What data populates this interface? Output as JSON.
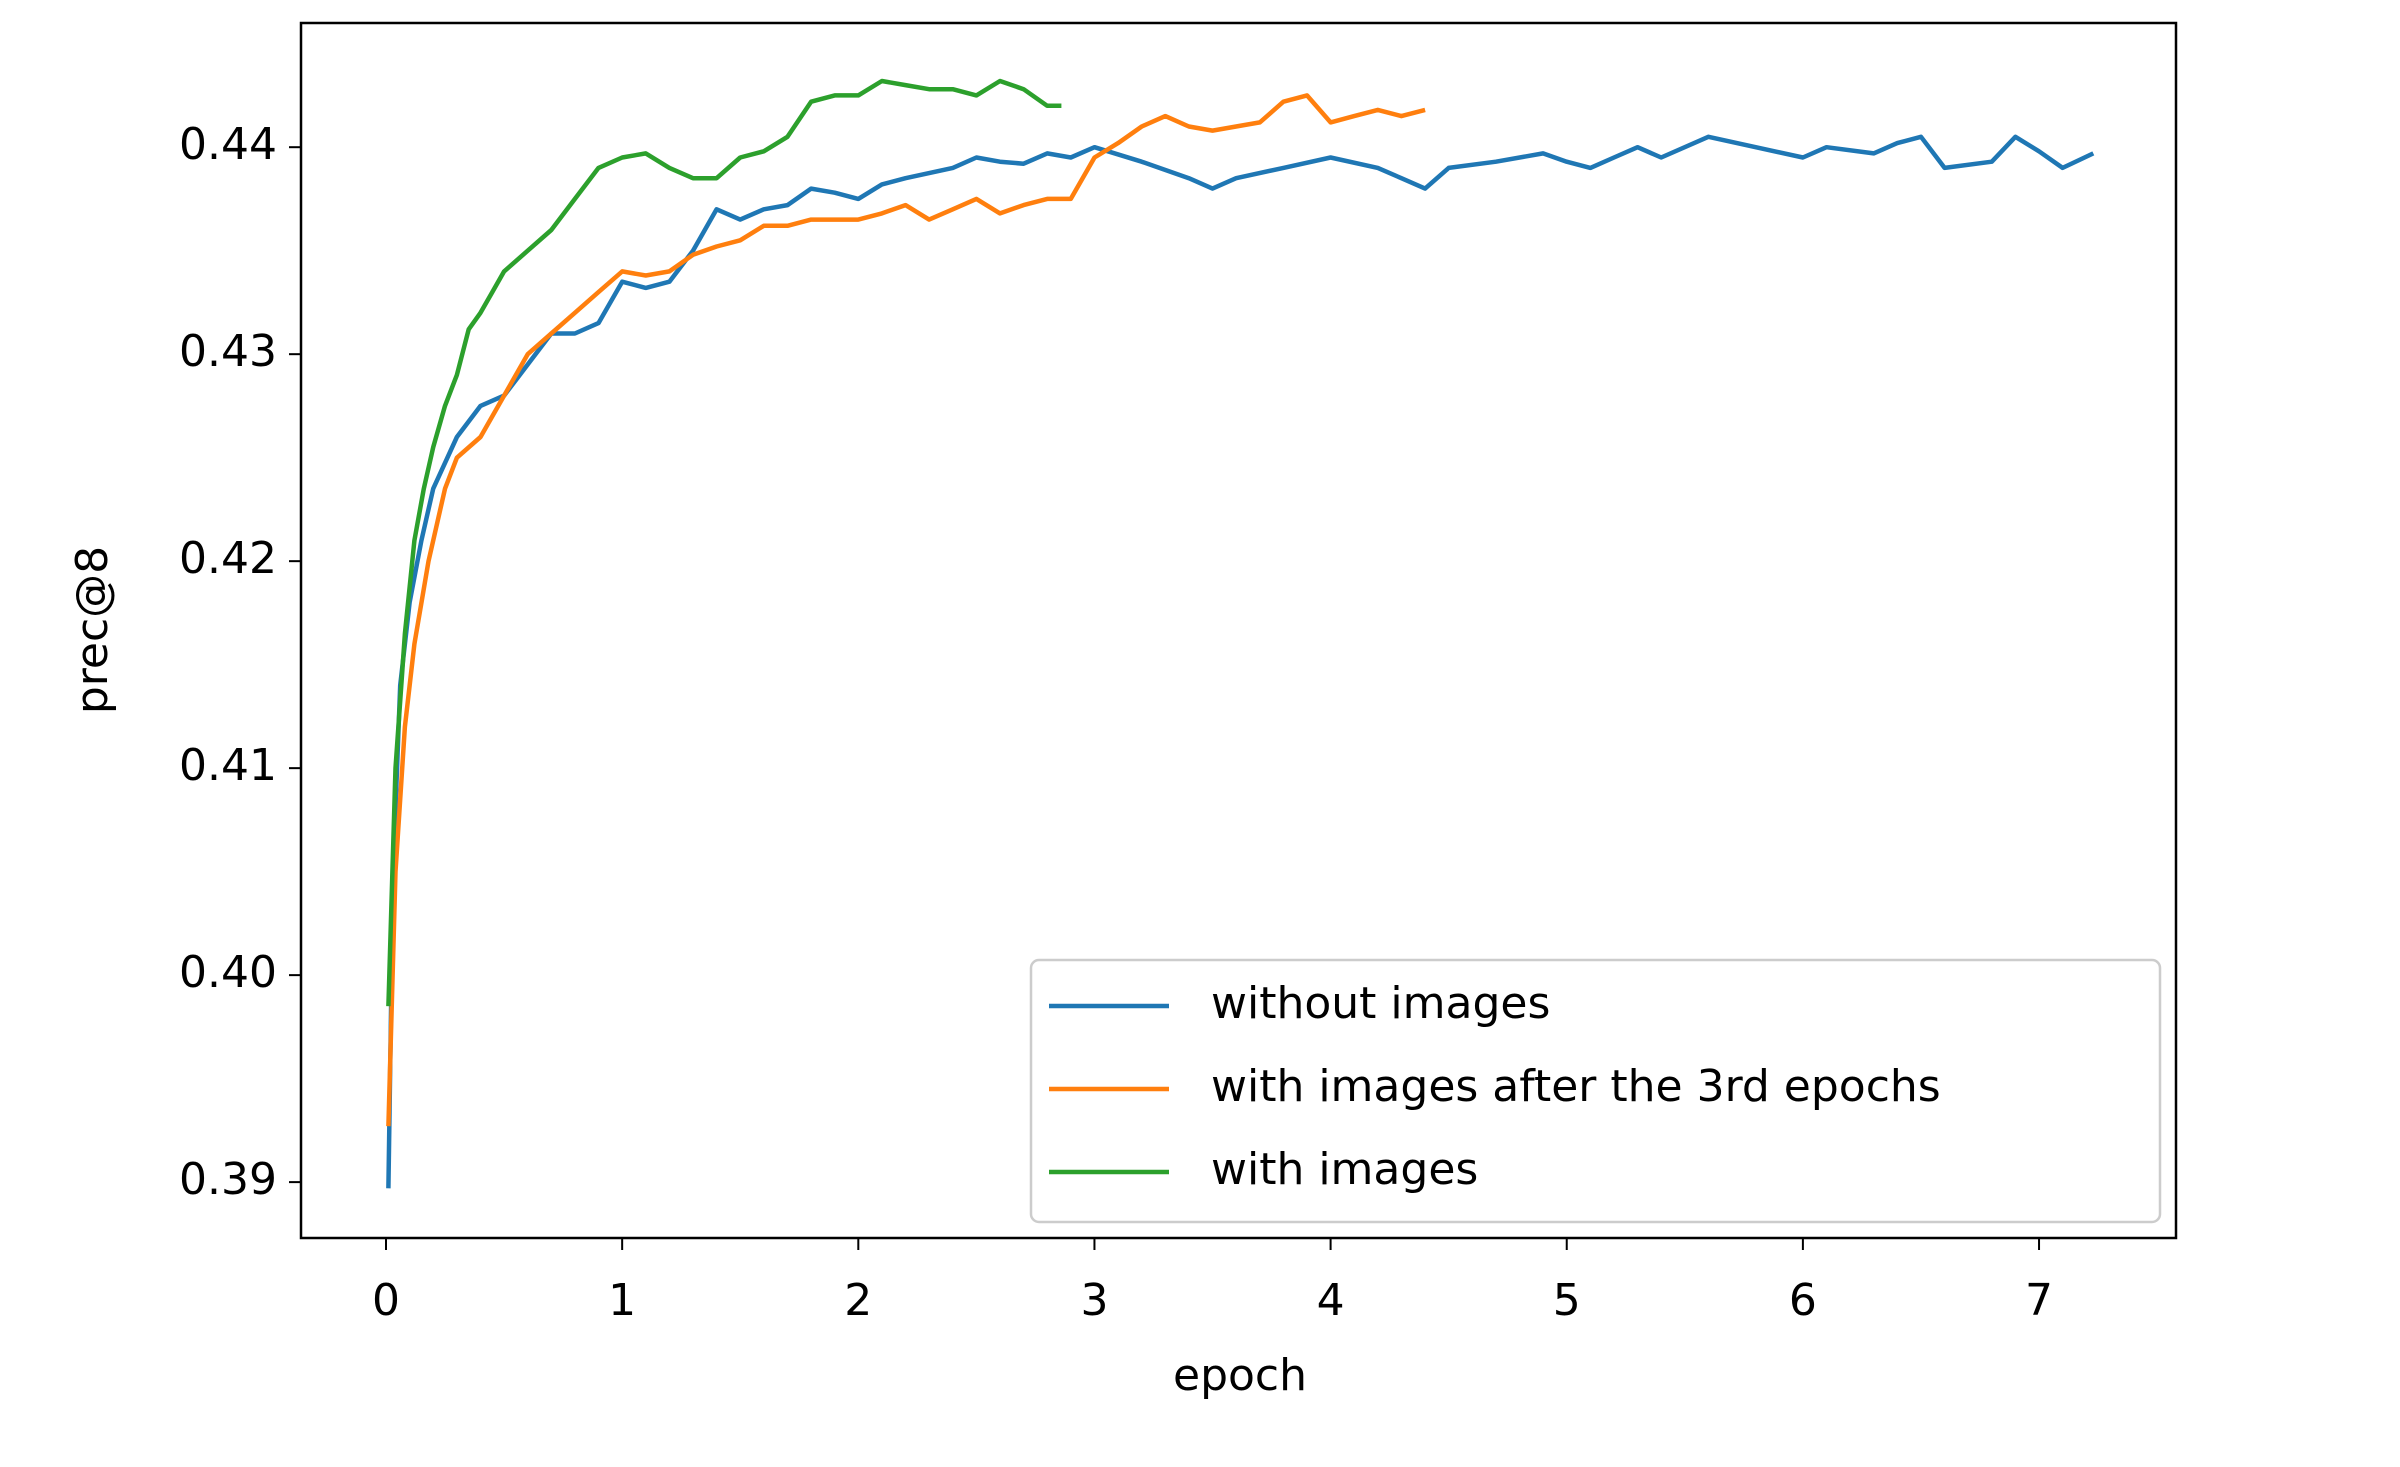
{
  "chart_data": {
    "type": "line",
    "xlabel": "epoch",
    "ylabel": "prec@8",
    "xlim": [
      -0.36,
      7.58
    ],
    "ylim": [
      0.3873,
      0.446
    ],
    "xticks": [
      0,
      1,
      2,
      3,
      4,
      5,
      6,
      7
    ],
    "yticks": [
      0.39,
      {
        "value": 0.4,
        "label": "0.40"
      },
      0.41,
      0.42,
      0.43,
      0.44
    ],
    "legend": "lower right",
    "series": [
      {
        "name": "without images",
        "color": "#1f77b4",
        "x": [
          0.01,
          0.03,
          0.06,
          0.1,
          0.15,
          0.2,
          0.3,
          0.4,
          0.5,
          0.6,
          0.7,
          0.8,
          0.9,
          1.0,
          1.1,
          1.2,
          1.3,
          1.4,
          1.5,
          1.6,
          1.7,
          1.8,
          1.9,
          2.0,
          2.1,
          2.2,
          2.4,
          2.5,
          2.6,
          2.7,
          2.8,
          2.9,
          3.0,
          3.2,
          3.4,
          3.5,
          3.6,
          3.8,
          4.0,
          4.2,
          4.3,
          4.4,
          4.5,
          4.7,
          4.9,
          5.0,
          5.1,
          5.2,
          5.3,
          5.4,
          5.6,
          5.8,
          6.0,
          6.1,
          6.3,
          6.4,
          6.5,
          6.6,
          6.8,
          6.9,
          7.0,
          7.1,
          7.23
        ],
        "values": [
          0.3897,
          0.405,
          0.414,
          0.418,
          0.421,
          0.4235,
          0.426,
          0.4275,
          0.428,
          0.4295,
          0.431,
          0.431,
          0.4315,
          0.4335,
          0.4332,
          0.4335,
          0.435,
          0.437,
          0.4365,
          0.437,
          0.4372,
          0.438,
          0.4378,
          0.4375,
          0.4382,
          0.4385,
          0.439,
          0.4395,
          0.4393,
          0.4392,
          0.4397,
          0.4395,
          0.44,
          0.4393,
          0.4385,
          0.438,
          0.4385,
          0.439,
          0.4395,
          0.439,
          0.4385,
          0.438,
          0.439,
          0.4393,
          0.4397,
          0.4393,
          0.439,
          0.4395,
          0.44,
          0.4395,
          0.4405,
          0.44,
          0.4395,
          0.44,
          0.4397,
          0.4402,
          0.4405,
          0.439,
          0.4393,
          0.4405,
          0.4398,
          0.439,
          0.4397
        ]
      },
      {
        "name": "with images after the 3rd epochs",
        "color": "#ff7f0e",
        "x": [
          0.01,
          0.04,
          0.08,
          0.12,
          0.18,
          0.25,
          0.3,
          0.4,
          0.5,
          0.6,
          0.7,
          0.8,
          0.9,
          1.0,
          1.1,
          1.2,
          1.3,
          1.4,
          1.5,
          1.6,
          1.7,
          1.8,
          1.9,
          2.0,
          2.1,
          2.2,
          2.3,
          2.4,
          2.5,
          2.6,
          2.7,
          2.8,
          2.9,
          3.0,
          3.1,
          3.2,
          3.3,
          3.4,
          3.5,
          3.6,
          3.7,
          3.8,
          3.9,
          4.0,
          4.1,
          4.2,
          4.3,
          4.4
        ],
        "values": [
          0.3927,
          0.405,
          0.412,
          0.416,
          0.42,
          0.4235,
          0.425,
          0.426,
          0.428,
          0.43,
          0.431,
          0.432,
          0.433,
          0.434,
          0.4338,
          0.434,
          0.4348,
          0.4352,
          0.4355,
          0.4362,
          0.4362,
          0.4365,
          0.4365,
          0.4365,
          0.4368,
          0.4372,
          0.4365,
          0.437,
          0.4375,
          0.4368,
          0.4372,
          0.4375,
          0.4375,
          0.4395,
          0.4402,
          0.441,
          0.4415,
          0.441,
          0.4408,
          0.441,
          0.4412,
          0.4422,
          0.4425,
          0.4412,
          0.4415,
          0.4418,
          0.4415,
          0.4418
        ]
      },
      {
        "name": "with images",
        "color": "#2ca02c",
        "x": [
          0.01,
          0.04,
          0.08,
          0.12,
          0.16,
          0.2,
          0.25,
          0.3,
          0.35,
          0.4,
          0.45,
          0.5,
          0.6,
          0.7,
          0.8,
          0.9,
          1.0,
          1.1,
          1.2,
          1.3,
          1.4,
          1.5,
          1.6,
          1.7,
          1.8,
          1.9,
          2.0,
          2.1,
          2.2,
          2.3,
          2.4,
          2.5,
          2.6,
          2.7,
          2.8,
          2.86
        ],
        "values": [
          0.3985,
          0.41,
          0.4165,
          0.421,
          0.4235,
          0.4255,
          0.4275,
          0.429,
          0.4312,
          0.432,
          0.433,
          0.434,
          0.435,
          0.436,
          0.4375,
          0.439,
          0.4395,
          0.4397,
          0.439,
          0.4385,
          0.4385,
          0.4395,
          0.4398,
          0.4405,
          0.4422,
          0.4425,
          0.4425,
          0.4432,
          0.443,
          0.4428,
          0.4428,
          0.4425,
          0.4432,
          0.4428,
          0.442,
          0.442
        ]
      }
    ]
  }
}
